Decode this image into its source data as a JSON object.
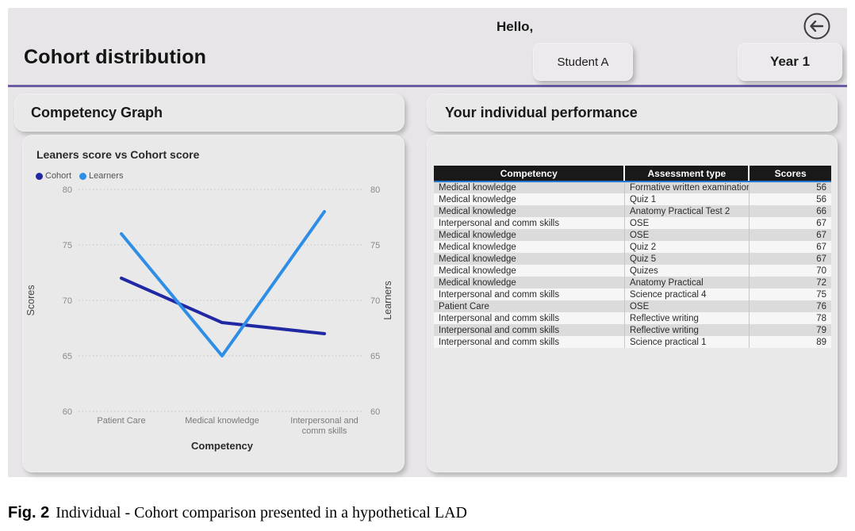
{
  "header": {
    "title": "Cohort distribution",
    "greeting": "Hello,",
    "student_button": "Student A",
    "year_button": "Year 1"
  },
  "left_panel": {
    "title": "Competency Graph"
  },
  "right_panel": {
    "title": "Your individual performance",
    "table": {
      "columns": [
        "Competency",
        "Assessment type",
        "Scores"
      ],
      "rows": [
        {
          "competency": "Medical knowledge",
          "assessment": "Formative written examination",
          "score": 56
        },
        {
          "competency": "Medical knowledge",
          "assessment": "Quiz 1",
          "score": 56
        },
        {
          "competency": "Medical knowledge",
          "assessment": "Anatomy Practical Test 2",
          "score": 66
        },
        {
          "competency": "Interpersonal and comm skills",
          "assessment": "OSE",
          "score": 67
        },
        {
          "competency": "Medical knowledge",
          "assessment": "OSE",
          "score": 67
        },
        {
          "competency": "Medical knowledge",
          "assessment": "Quiz 2",
          "score": 67
        },
        {
          "competency": "Medical knowledge",
          "assessment": "Quiz 5",
          "score": 67
        },
        {
          "competency": "Medical knowledge",
          "assessment": "Quizes",
          "score": 70
        },
        {
          "competency": "Medical knowledge",
          "assessment": "Anatomy Practical",
          "score": 72
        },
        {
          "competency": "Interpersonal and comm skills",
          "assessment": "Science practical 4",
          "score": 75
        },
        {
          "competency": "Patient Care",
          "assessment": "OSE",
          "score": 76
        },
        {
          "competency": "Interpersonal and comm skills",
          "assessment": "Reflective writing",
          "score": 78
        },
        {
          "competency": "Interpersonal and comm skills",
          "assessment": "Reflective writing",
          "score": 79
        },
        {
          "competency": "Interpersonal and comm skills",
          "assessment": "Science practical 1",
          "score": 89
        }
      ]
    }
  },
  "chart_data": {
    "type": "line",
    "title": "Leaners score vs Cohort score",
    "categories": [
      "Patient Care",
      "Medical knowledge",
      "Interpersonal and comm skills"
    ],
    "series": [
      {
        "name": "Cohort",
        "color": "#2028a4",
        "values": [
          72,
          68,
          67
        ]
      },
      {
        "name": "Learners",
        "color": "#2e8ee6",
        "values": [
          76,
          65,
          78
        ]
      }
    ],
    "xlabel": "Competency",
    "ylabel_left": "Scores",
    "ylabel_right": "Learners",
    "ylim": [
      60,
      80
    ],
    "yticks": [
      80,
      75,
      70,
      65,
      60
    ],
    "grid": "dotted horizontal",
    "legend_position": "top-left"
  },
  "caption": {
    "label": "Fig. 2",
    "text": "Individual - Cohort comparison presented in a hypothetical LAD"
  }
}
